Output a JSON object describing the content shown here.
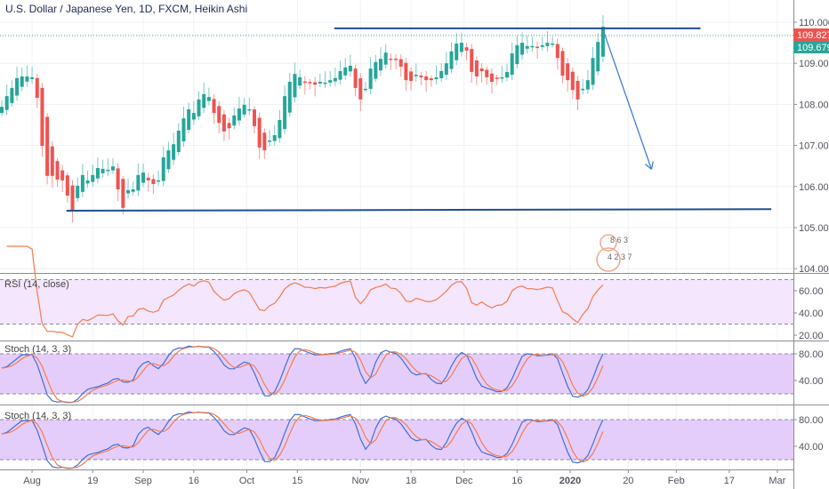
{
  "header": {
    "title": "U.S. Dollar / Japanese Yen, 1D, FXCM, Heikin Ashi"
  },
  "price_labels": {
    "high": "109.827",
    "last": "109.679"
  },
  "colors": {
    "up": "#26a69a",
    "down": "#ef5350",
    "drawing": "#1e4f91",
    "arrow": "#3c7fd4",
    "rsi": "#f57c4b",
    "stoch_k": "#3f6fd8",
    "stoch_d": "#f57c4b",
    "rsi_band": "#f3e6fd",
    "stoch_band": "#e5cdfb"
  },
  "watermark": {
    "line1": "8 6 3",
    "line2": "4 2 3 7"
  },
  "chart_data": {
    "type": "candlestick",
    "title": "U.S. Dollar / Japanese Yen, 1D, FXCM, Heikin Ashi",
    "closes": [
      107.94,
      108.2,
      108.4,
      108.64,
      108.68,
      108.68,
      108.66,
      108.16,
      106.99,
      106.26,
      106.26,
      106.17,
      106.15,
      105.78,
      105.41,
      106.02,
      106.28,
      106.15,
      106.28,
      106.45,
      106.43,
      106.41,
      106.49,
      105.93,
      105.48,
      105.91,
      105.93,
      106.28,
      106.34,
      106.15,
      106.06,
      106.15,
      106.71,
      106.88,
      107.03,
      107.36,
      107.66,
      107.88,
      107.79,
      108.12,
      108.25,
      108.18,
      107.79,
      107.55,
      107.34,
      107.42,
      107.73,
      107.9,
      107.99,
      107.88,
      107.47,
      106.95,
      106.88,
      107.12,
      107.25,
      107.62,
      108.2,
      108.55,
      108.74,
      108.66,
      108.53,
      108.53,
      108.48,
      108.55,
      108.53,
      108.59,
      108.64,
      108.81,
      108.9,
      108.94,
      108.4,
      108.12,
      108.38,
      108.87,
      109.03,
      109.11,
      109.26,
      109.11,
      109.09,
      108.92,
      108.59,
      108.57,
      108.72,
      108.66,
      108.59,
      108.59,
      108.66,
      108.81,
      109.0,
      109.29,
      109.48,
      109.5,
      109.31,
      108.79,
      108.68,
      108.81,
      108.66,
      108.55,
      108.64,
      108.66,
      108.79,
      109.24,
      109.44,
      109.5,
      109.42,
      109.42,
      109.39,
      109.44,
      109.5,
      109.48,
      109.13,
      108.7,
      108.59,
      108.35,
      108.12,
      108.38,
      108.59,
      109.13,
      109.52,
      109.89
    ],
    "price_axis": {
      "ticks": [
        "110.000",
        "109.000",
        "108.000",
        "107.000",
        "106.000",
        "105.000",
        "104.000"
      ],
      "range": [
        104,
        110
      ]
    },
    "time_axis": {
      "ticks": [
        "Aug",
        "19",
        "Sep",
        "16",
        "Oct",
        "15",
        "Nov",
        "18",
        "Dec",
        "16",
        "2020",
        "20",
        "Feb",
        "17",
        "Mar"
      ],
      "tick_candle_index": [
        6,
        18,
        28,
        38,
        48.5,
        58.5,
        71,
        81,
        91.5,
        102,
        112.5,
        124,
        133.5,
        144,
        153.5
      ]
    },
    "last_price": 109.679,
    "drawings": [
      {
        "type": "resistance-line",
        "price_from": 109.85,
        "price_to": 109.85,
        "index_from": 65.8,
        "index_to": 138.3
      },
      {
        "type": "support-line",
        "price_from": 105.41,
        "price_to": 105.45,
        "index_from": 12.8,
        "index_to": 152.3
      },
      {
        "type": "arrow",
        "price_from": 109.82,
        "price_to": 106.42,
        "index_from": 119,
        "index_to": 128.6
      }
    ],
    "indicators": [
      {
        "name": "RSI (14, close)",
        "period": 14,
        "levels": [
          70,
          30
        ],
        "ticks": [
          "60.00",
          "40.00",
          "20.00"
        ]
      },
      {
        "name": "Stoch (14, 3, 3)",
        "levels": [
          80,
          20
        ],
        "ticks": [
          "80.00",
          "40.00"
        ]
      },
      {
        "name": "Stoch (14, 3, 3)",
        "levels": [
          80,
          20
        ],
        "ticks": [
          "80.00",
          "40.00"
        ]
      }
    ]
  }
}
